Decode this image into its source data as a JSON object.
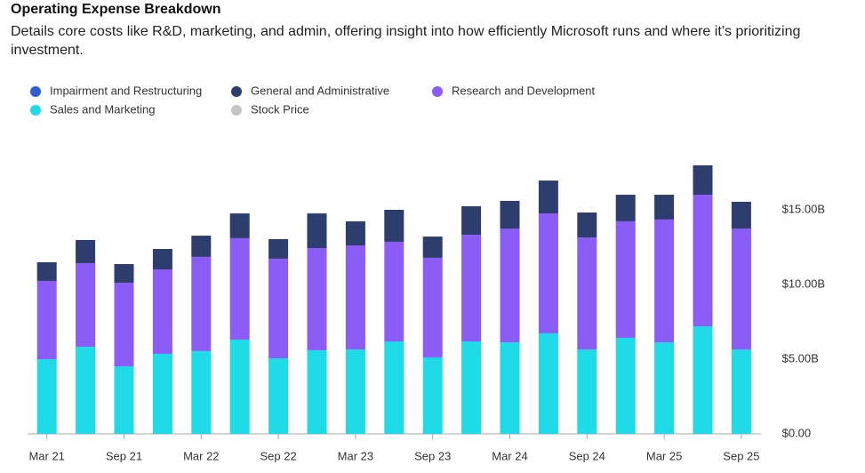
{
  "chart_data": {
    "type": "stacked-bar",
    "title": "Operating Expense Breakdown",
    "subtitle": "Details core costs like R&D, marketing, and admin, offering insight into how efficiently Microsoft runs and where it’s prioritizing investment.",
    "categories": [
      "Mar 21",
      null,
      "Sep 21",
      null,
      "Mar 22",
      null,
      "Sep 22",
      null,
      "Mar 23",
      null,
      "Sep 23",
      null,
      "Mar 24",
      null,
      "Sep 24",
      null,
      "Mar 25",
      null,
      "Sep 25"
    ],
    "series": [
      {
        "name": "Impairment and Restructuring",
        "color": "#2f5fd0",
        "visible": true,
        "values": [
          null,
          null,
          null,
          null,
          null,
          null,
          null,
          null,
          null,
          null,
          null,
          null,
          null,
          null,
          null,
          null,
          null,
          null,
          null
        ]
      },
      {
        "name": "General and Administrative",
        "color": "#2d3e6e",
        "visible": true,
        "values": [
          1.25,
          1.55,
          1.25,
          1.37,
          1.42,
          1.66,
          1.31,
          2.32,
          1.61,
          2.14,
          1.42,
          1.91,
          1.85,
          2.2,
          1.67,
          1.78,
          1.66,
          1.97,
          1.79
        ]
      },
      {
        "name": "Research and Development",
        "color": "#8b5cf6",
        "visible": true,
        "values": [
          5.24,
          5.6,
          5.6,
          5.65,
          6.31,
          6.79,
          6.67,
          6.84,
          6.97,
          6.67,
          6.67,
          7.14,
          7.62,
          8.03,
          7.5,
          7.8,
          8.22,
          8.81,
          8.1
        ]
      },
      {
        "name": "Sales and Marketing",
        "color": "#1fdbe8",
        "visible": true,
        "values": [
          5.0,
          5.83,
          4.52,
          5.36,
          5.54,
          6.31,
          5.06,
          5.6,
          5.65,
          6.19,
          5.12,
          6.19,
          6.13,
          6.73,
          5.65,
          6.43,
          6.13,
          7.2,
          5.65
        ]
      },
      {
        "name": "Stock Price",
        "color": "#c4c4c4",
        "visible": false,
        "values": [
          null,
          null,
          null,
          null,
          null,
          null,
          null,
          null,
          null,
          null,
          null,
          null,
          null,
          null,
          null,
          null,
          null,
          null,
          null
        ]
      }
    ],
    "ylim": [
      0,
      20
    ],
    "yticks": [
      {
        "value": 0,
        "label": "$0.00"
      },
      {
        "value": 5,
        "label": "$5.00B"
      },
      {
        "value": 10,
        "label": "$10.00B"
      },
      {
        "value": 15,
        "label": "$15.00B"
      }
    ],
    "y_axis_side": "right",
    "grid": false
  }
}
